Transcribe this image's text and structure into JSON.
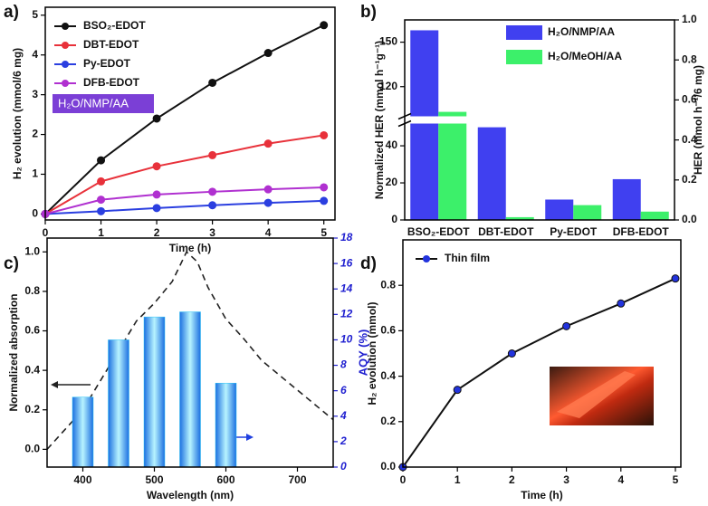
{
  "chart_data": [
    {
      "type": "line",
      "label": "a)",
      "xlabel": "Time (h)",
      "ylabel": "H₂ evolution (mmol/6 mg)",
      "x": [
        0,
        1,
        2,
        3,
        4,
        5
      ],
      "xlim": [
        0,
        5.2
      ],
      "xticks": [
        0,
        1,
        2,
        3,
        4,
        5
      ],
      "ylim": [
        -0.15,
        5.2
      ],
      "yticks": [
        0,
        1,
        2,
        3,
        4,
        5
      ],
      "legend": "upper left",
      "annotation": "H₂O/NMP/AA",
      "series": [
        {
          "name": "BSO₂-EDOT",
          "color": "#111111",
          "values": [
            0,
            1.35,
            2.4,
            3.3,
            4.05,
            4.75
          ]
        },
        {
          "name": "DBT-EDOT",
          "color": "#e8313a",
          "values": [
            0,
            0.82,
            1.2,
            1.48,
            1.77,
            1.98
          ]
        },
        {
          "name": "Py-EDOT",
          "color": "#2b3fe0",
          "values": [
            0,
            0.07,
            0.15,
            0.22,
            0.28,
            0.33
          ]
        },
        {
          "name": "DFB-EDOT",
          "color": "#b030d0",
          "values": [
            0,
            0.36,
            0.49,
            0.56,
            0.62,
            0.67
          ]
        }
      ]
    },
    {
      "type": "bar",
      "label": "b)",
      "ylabel": "Normalized HER (mmol h⁻¹g⁻¹)",
      "y2label": "HER (mmol h⁻¹/6 mg)",
      "categories": [
        "BSO₂-EDOT",
        "DBT-EDOT",
        "Py-EDOT",
        "DFB-EDOT"
      ],
      "ylim": [
        0,
        165
      ],
      "ybreak": [
        52,
        100
      ],
      "yticks": [
        0,
        20,
        40,
        120,
        150
      ],
      "y2lim": [
        0,
        1.0
      ],
      "y2ticks": [
        {
          "value": 0,
          "label": "0.0"
        },
        0.2,
        0.4,
        0.6,
        0.8,
        {
          "value": 1.0,
          "label": "1.0"
        }
      ],
      "legend": "upper right",
      "series": [
        {
          "name": "H₂O/NMP/AA",
          "color": "#4040f0",
          "values": [
            158,
            50,
            11,
            22
          ]
        },
        {
          "name": "H₂O/MeOH/AA",
          "color": "#3cf06a",
          "values": [
            103,
            1.5,
            8,
            4.5
          ]
        }
      ]
    },
    {
      "type": "combo",
      "label": "c)",
      "xlabel": "Wavelength (nm)",
      "ylabel": "Normalized absorption",
      "y2label": "AQY (%)",
      "xlim": [
        350,
        750
      ],
      "xticks": [
        400,
        500,
        600,
        700
      ],
      "ylim": [
        -0.09,
        1.07
      ],
      "yticks": [
        {
          "value": 0,
          "label": "0.0"
        },
        0.2,
        0.4,
        0.6,
        0.8,
        {
          "value": 1.0,
          "label": "1.0"
        }
      ],
      "y2lim": [
        0,
        18
      ],
      "y2ticks": [
        0,
        2,
        4,
        6,
        8,
        10,
        12,
        14,
        16,
        18
      ],
      "y2_color": "#2020d0",
      "series": [
        {
          "type": "line",
          "dash": true,
          "color": "#222222",
          "x": [
            350,
            375,
            400,
            425,
            450,
            475,
            500,
            525,
            545,
            560,
            575,
            600,
            625,
            650,
            700,
            750
          ],
          "values": [
            0,
            0.1,
            0.2,
            0.35,
            0.5,
            0.65,
            0.74,
            0.85,
            1.0,
            0.95,
            0.82,
            0.66,
            0.56,
            0.45,
            0.3,
            0.15
          ]
        },
        {
          "type": "bar",
          "axis": "y2",
          "color": "#29c4f6",
          "x": [
            400,
            450,
            500,
            550,
            600
          ],
          "values": [
            5.5,
            10.0,
            11.8,
            12.2,
            6.6
          ]
        }
      ]
    },
    {
      "type": "line",
      "label": "d)",
      "xlabel": "Time (h)",
      "ylabel": "H₂ evolution (mmol)",
      "x": [
        0,
        1,
        2,
        3,
        4,
        5
      ],
      "xlim": [
        0,
        5.1
      ],
      "xticks": [
        0,
        1,
        2,
        3,
        4,
        5
      ],
      "ylim": [
        0,
        1.0
      ],
      "yticks": [
        {
          "value": 0,
          "label": "0.0"
        },
        0.2,
        0.4,
        0.6,
        0.8
      ],
      "legend": "upper left",
      "series": [
        {
          "name": "Thin film",
          "color": "#2233dd",
          "line_color": "#111111",
          "values": [
            0,
            0.34,
            0.5,
            0.62,
            0.72,
            0.83
          ]
        }
      ]
    }
  ]
}
